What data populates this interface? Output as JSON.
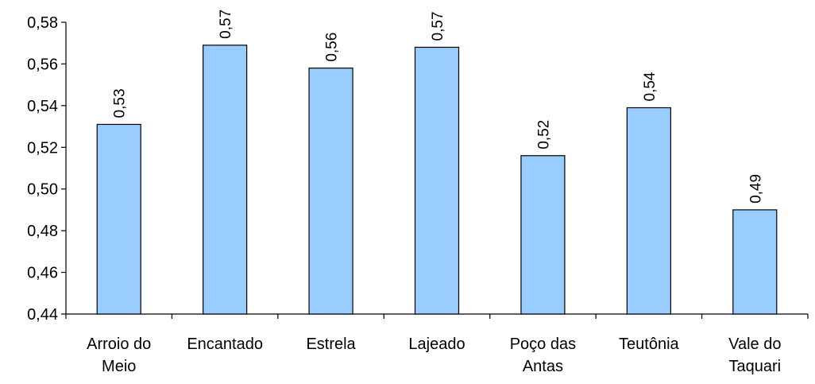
{
  "chart_data": {
    "type": "bar",
    "categories": [
      [
        "Arroio do",
        "Meio"
      ],
      [
        "Encantado"
      ],
      [
        "Estrela"
      ],
      [
        "Lajeado"
      ],
      [
        "Poço das",
        "Antas"
      ],
      [
        "Teutônia"
      ],
      [
        "Vale do",
        "Taquari"
      ]
    ],
    "values": [
      0.531,
      0.569,
      0.558,
      0.568,
      0.516,
      0.539,
      0.49
    ],
    "data_labels": [
      "0,53",
      "0,57",
      "0,56",
      "0,57",
      "0,52",
      "0,54",
      "0,49"
    ],
    "y_ticks": [
      {
        "value": 0.44,
        "label": "0,44"
      },
      {
        "value": 0.46,
        "label": "0,46"
      },
      {
        "value": 0.48,
        "label": "0,48"
      },
      {
        "value": 0.5,
        "label": "0,50"
      },
      {
        "value": 0.52,
        "label": "0,52"
      },
      {
        "value": 0.54,
        "label": "0,54"
      },
      {
        "value": 0.56,
        "label": "0,56"
      },
      {
        "value": 0.58,
        "label": "0,58"
      }
    ],
    "ylim": [
      0.44,
      0.58
    ],
    "title": "",
    "xlabel": "",
    "ylabel": "",
    "grid": false,
    "legend": "none",
    "colors": {
      "bar_fill": "#99ccff",
      "bar_stroke": "#000000",
      "axis": "#000000"
    }
  }
}
